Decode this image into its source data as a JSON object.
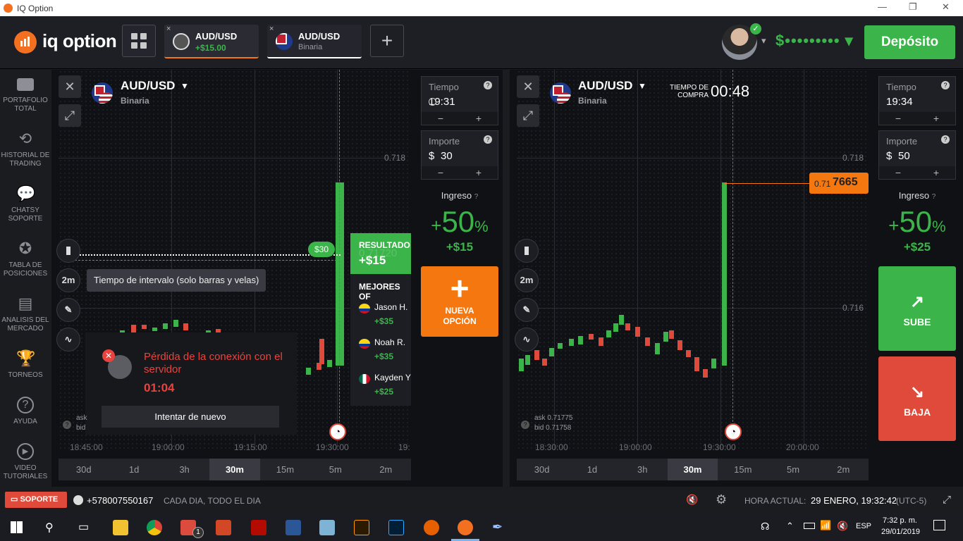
{
  "window": {
    "title": "IQ Option",
    "min": "—",
    "max": "❐",
    "close": "✕"
  },
  "brand": {
    "name": "iq option"
  },
  "tabs": [
    {
      "pair": "AUD/USD",
      "sub": "+$15.00",
      "close": "×"
    },
    {
      "pair": "AUD/USD",
      "sub": "Binaria",
      "close": "×"
    }
  ],
  "add_tab": "+",
  "account": {
    "balance": "$••••••••• ▾",
    "deposit": "Depósito",
    "check": "✓",
    "menu": "▾"
  },
  "sidebar": [
    {
      "label": "PORTAFOLIO TOTAL",
      "icon": "briefcase-icon"
    },
    {
      "label": "HISTORIAL DE TRADING",
      "icon": "history-icon"
    },
    {
      "label": "CHATSY SOPORTE",
      "icon": "chat-icon"
    },
    {
      "label": "TABLA DE POSICIONES",
      "icon": "medal-icon"
    },
    {
      "label": "ANALISIS DEL MERCADO",
      "icon": "newspaper-icon"
    },
    {
      "label": "TORNEOS",
      "icon": "trophy-icon"
    },
    {
      "label": "AYUDA",
      "icon": "help-icon"
    },
    {
      "label": "VIDEO TUTORIALES",
      "icon": "play-icon"
    }
  ],
  "left": {
    "pair": "AUD/USD",
    "type": "Binaria",
    "price_tick": "0.718",
    "close": "✕",
    "expand": "⤢",
    "bet_tag": "$30",
    "result_label": "RESULTADO",
    "result_value": "+$15",
    "result_ghost": "0.71720",
    "leaders_title": "MEJORES OF",
    "leaders": [
      {
        "name": "Jason H.",
        "amount": "+$35"
      },
      {
        "name": "Noah R.",
        "amount": "+$35"
      },
      {
        "name": "Kayden Y",
        "amount": "+$25"
      }
    ],
    "tooltip": "Tiempo de intervalo (solo barras y velas)",
    "interval": "2m",
    "error_title": "Pérdida de la conexión con el servidor",
    "error_timer": "01:04",
    "retry": "Intentar de nuevo",
    "ask": "ask",
    "bid": "bid",
    "xaxis": [
      "18:45:00",
      "19:00:00",
      "19:15:00",
      "19:30:00",
      "19:"
    ],
    "time_tabs": [
      "30d",
      "1d",
      "3h",
      "30m",
      "15m",
      "5m",
      "2m"
    ],
    "time_active": "30m",
    "form": {
      "time_label": "Tiempo",
      "time_value": "19:31",
      "amount_label": "Importe",
      "amount_value": "30",
      "currency": "$",
      "minus": "−",
      "plus": "+",
      "q": "?"
    },
    "income_label": "Ingreso",
    "income_pct": "50",
    "income_pct_sign": "%",
    "income_plus": "+",
    "income_amount": "+$15",
    "new_option": "NUEVA OPCIÓN",
    "new_option_icon": "+"
  },
  "right": {
    "pair": "AUD/USD",
    "type": "Binaria",
    "purchase_time_label": "TIEMPO DE COMPRA",
    "purchase_time": "00:48",
    "price_ticks": [
      "0.718",
      "0.716"
    ],
    "current_price_prefix": "0.71",
    "current_price_suffix": "7665",
    "ask": "ask 0.71775",
    "bid": "bid 0.71758",
    "interval": "2m",
    "xaxis": [
      "18:30:00",
      "19:00:00",
      "19:30:00",
      "20:00:00"
    ],
    "time_tabs": [
      "30d",
      "1d",
      "3h",
      "30m",
      "15m",
      "5m",
      "2m"
    ],
    "time_active": "30m",
    "form": {
      "time_label": "Tiempo",
      "time_value": "19:34",
      "amount_label": "Importe",
      "amount_value": "50",
      "currency": "$",
      "minus": "−",
      "plus": "+",
      "q": "?"
    },
    "income_label": "Ingreso",
    "income_pct": "50",
    "income_pct_sign": "%",
    "income_plus": "+",
    "income_amount": "+$25",
    "up": "SUBE",
    "down": "BAJA"
  },
  "statusbar": {
    "support": "SOPORTE",
    "phone": "+578007550167",
    "hours": "CADA DIA, TODO EL DIA",
    "clock_label": "HORA ACTUAL:",
    "clock_value": "29 ENERO, 19:32:42",
    "tz": "(UTC-5)"
  },
  "taskbar": {
    "lang": "ESP",
    "time": "7:32 p. m.",
    "date": "29/01/2019",
    "badge": "1"
  },
  "colors": {
    "green": "#3bb54a",
    "orange": "#f5770f",
    "red": "#e04a3b",
    "error": "#e8433f"
  }
}
